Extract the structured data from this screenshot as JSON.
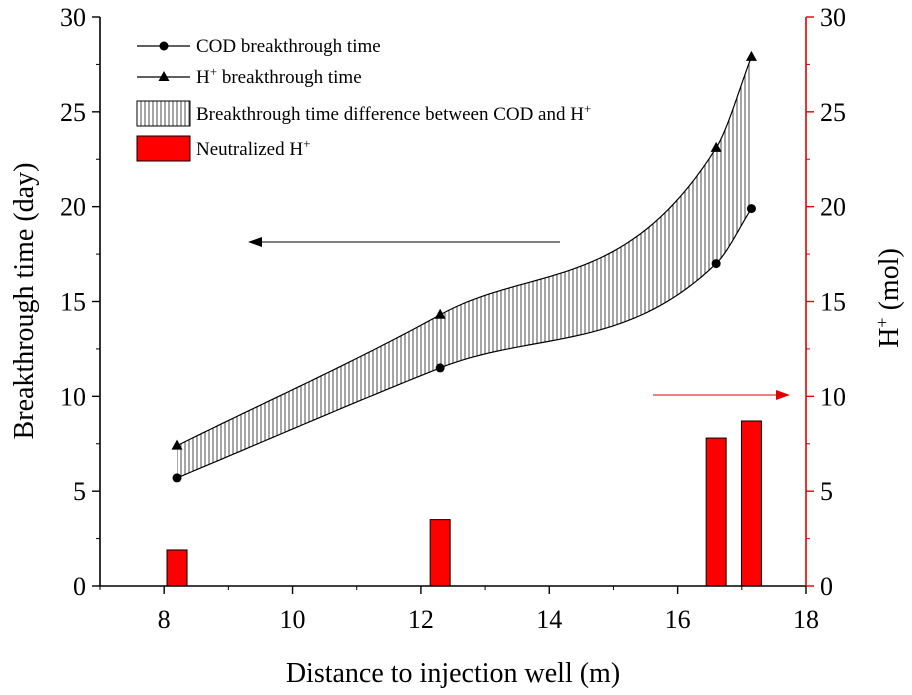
{
  "chart_data": {
    "type": "line",
    "xlabel": "Distance to injection well (m)",
    "ylabel_left": "Breakthrough time (day)",
    "ylabel_right_base": "H",
    "ylabel_right_sup": "+",
    "ylabel_right_unit": " (mol)",
    "xlim": [
      7,
      18
    ],
    "ylim_left": [
      0,
      30
    ],
    "ylim_right": [
      0,
      30
    ],
    "x_ticks": [
      8,
      10,
      12,
      14,
      16,
      18
    ],
    "y_ticks": [
      0,
      5,
      10,
      15,
      20,
      25,
      30
    ],
    "series": [
      {
        "name": "COD breakthrough time",
        "marker": "circle",
        "axis": "left",
        "x": [
          8.2,
          12.3,
          16.6,
          17.15
        ],
        "values": [
          5.7,
          11.5,
          17.0,
          19.9
        ]
      },
      {
        "name": "H+ breakthrough time",
        "marker": "triangle",
        "axis": "left",
        "x": [
          8.2,
          12.3,
          16.6,
          17.15
        ],
        "values": [
          7.4,
          14.3,
          23.1,
          27.9
        ]
      },
      {
        "name": "Neutralized H+",
        "type": "bar",
        "axis": "right",
        "color": "#ff0000",
        "x": [
          8.2,
          12.3,
          16.6,
          17.15
        ],
        "values": [
          1.9,
          3.5,
          7.8,
          8.7
        ]
      }
    ],
    "band": {
      "name": "Breakthrough time difference between COD and H+",
      "between": [
        "COD breakthrough time",
        "H+ breakthrough time"
      ],
      "pattern": "vertical-hatch"
    },
    "legend": {
      "placement": "top-left",
      "entries": [
        {
          "key": "cod",
          "text": "COD breakthrough time"
        },
        {
          "key": "h",
          "base": "H",
          "sup": "+",
          "rest": " breakthrough time"
        },
        {
          "key": "diff",
          "text": "Breakthrough time difference between COD and H",
          "sup": "+"
        },
        {
          "key": "neut",
          "text": "Neutralized H",
          "sup": "+"
        }
      ]
    },
    "annotations": [
      {
        "name": "left-axis-arrow",
        "direction": "left",
        "color": "#000000"
      },
      {
        "name": "right-axis-arrow",
        "direction": "right",
        "color": "#e00000"
      }
    ],
    "colors": {
      "right_axis": "#e00000",
      "bar": "#ff0000"
    }
  }
}
